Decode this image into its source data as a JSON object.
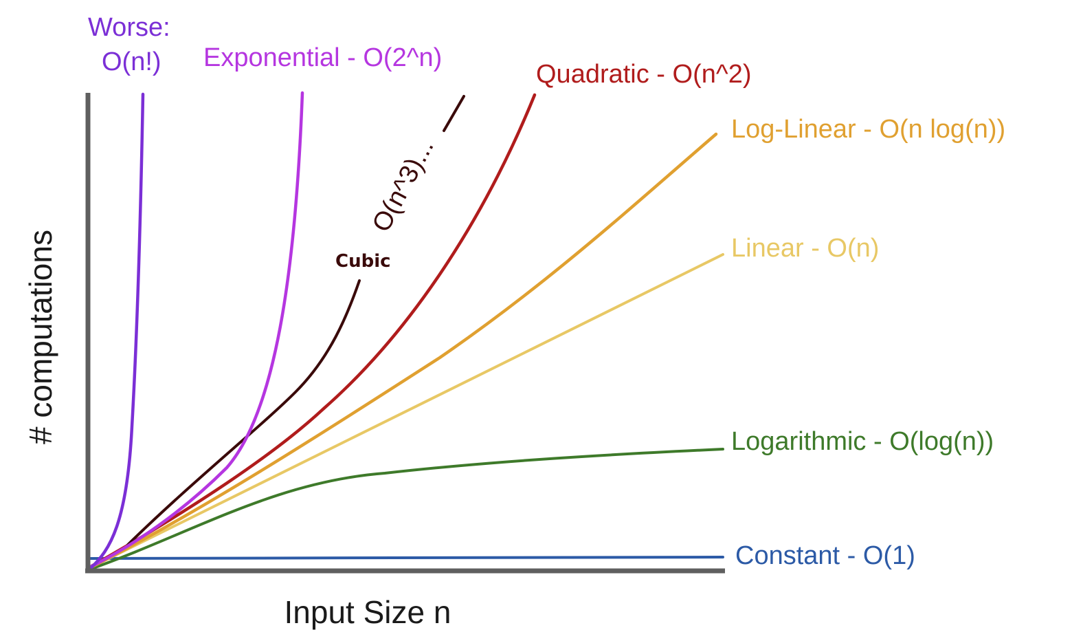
{
  "chart_data": {
    "type": "line",
    "title": "",
    "xlabel": "Input Size n",
    "ylabel": "# computations",
    "grid": false,
    "legend": "none (labels placed at curve ends)",
    "series": [
      {
        "name": "Worse:",
        "label_line2": "O(n!)",
        "color": "#7b2fd6"
      },
      {
        "name": "Exponential - O(2^n)",
        "color": "#b536e0"
      },
      {
        "name": "O(n^3)...",
        "note": "Cubic",
        "color": "#3a0a0a"
      },
      {
        "name": "Quadratic - O(n^2)",
        "color": "#b01c1c"
      },
      {
        "name": "Log-Linear - O(n log(n))",
        "color": "#e0a030"
      },
      {
        "name": "Linear - O(n)",
        "color": "#e8c865"
      },
      {
        "name": "Logarithmic - O(log(n))",
        "color": "#3e7a2a"
      },
      {
        "name": "Constant - O(1)",
        "color": "#2c5aa6"
      }
    ]
  }
}
